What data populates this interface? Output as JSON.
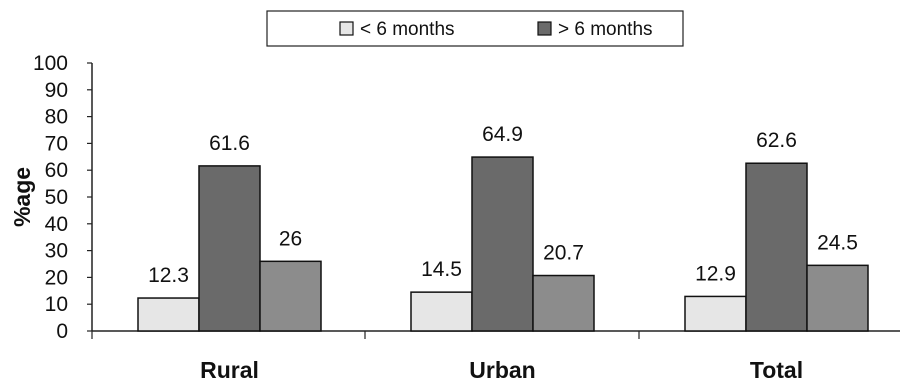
{
  "chart_data": {
    "type": "bar",
    "categories": [
      "Rural",
      "Urban",
      "Total"
    ],
    "series": [
      {
        "name": "< 6 months",
        "values": [
          12.3,
          14.5,
          12.9
        ],
        "color": "#e6e6e6"
      },
      {
        "name": "> 6 months",
        "values": [
          61.6,
          64.9,
          62.6
        ],
        "color": "#6a6a6a"
      },
      {
        "name": "",
        "values": [
          26,
          20.7,
          24.5
        ],
        "color": "#8c8c8c"
      }
    ],
    "title": "",
    "xlabel": "",
    "ylabel": "%age",
    "ylim": [
      0,
      100
    ],
    "yticks": [
      "0",
      "10",
      "20",
      "30",
      "40",
      "50",
      "60",
      "70",
      "80",
      "90",
      "100"
    ],
    "data_labels": [
      [
        "12.3",
        "14.5",
        "12.9"
      ],
      [
        "61.6",
        "64.9",
        "62.6"
      ],
      [
        "26",
        "20.7",
        "24.5"
      ]
    ],
    "grid": false,
    "legend_position": "top-center"
  }
}
